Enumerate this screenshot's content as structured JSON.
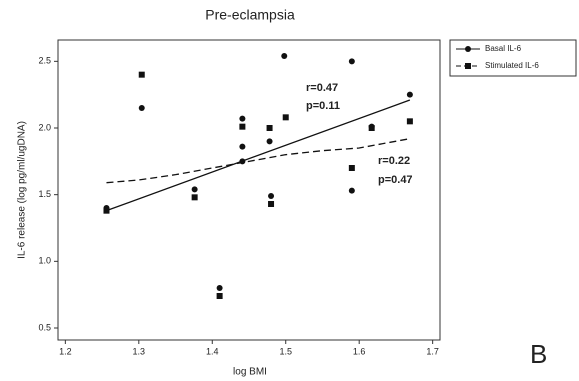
{
  "chart_data": {
    "type": "scatter",
    "title": "Pre-eclampsia",
    "x_label": "log BMI",
    "y_label": "IL-6 release (log pg/ml/ugDNA)",
    "xlim": [
      1.19,
      1.71
    ],
    "ylim": [
      0.41,
      2.66
    ],
    "xticks": [
      1.2,
      1.3,
      1.4,
      1.5,
      1.6,
      1.7
    ],
    "yticks": [
      0.5,
      {
        "value": 1.0,
        "label": "1.0"
      },
      1.5,
      {
        "value": 2.0,
        "label": "2.0"
      },
      2.5
    ],
    "legend": "outside-top-right",
    "series": [
      {
        "name": "Basal IL-6",
        "color": "#111111",
        "marker": "circle",
        "fit_style": "solid",
        "x": [
          1.256,
          1.304,
          1.376,
          1.41,
          1.441,
          1.441,
          1.441,
          1.478,
          1.48,
          1.498,
          1.59,
          1.59,
          1.617,
          1.669
        ],
        "values": [
          1.4,
          2.15,
          1.54,
          0.8,
          2.07,
          1.86,
          1.75,
          1.9,
          1.49,
          2.54,
          2.5,
          1.53,
          2.01,
          2.25
        ],
        "fit": {
          "x": [
            1.256,
            1.669
          ],
          "values": [
            1.38,
            2.21
          ]
        }
      },
      {
        "name": "Stimulated IL-6",
        "color": "#111111",
        "marker": "square",
        "fit_style": "dashed",
        "x": [
          1.256,
          1.304,
          1.376,
          1.41,
          1.441,
          1.478,
          1.48,
          1.5,
          1.59,
          1.617,
          1.669
        ],
        "values": [
          1.38,
          2.4,
          1.48,
          0.74,
          2.01,
          2.0,
          1.43,
          2.08,
          1.7,
          2.0,
          2.05
        ],
        "fit": {
          "x": [
            1.256,
            1.3,
            1.35,
            1.4,
            1.45,
            1.5,
            1.55,
            1.6,
            1.669
          ],
          "values": [
            1.59,
            1.61,
            1.65,
            1.7,
            1.75,
            1.8,
            1.83,
            1.85,
            1.92
          ]
        }
      }
    ],
    "annotations": [
      "r=0.47",
      "p=0.11",
      "r=0.22",
      "p=0.47",
      "B"
    ]
  }
}
